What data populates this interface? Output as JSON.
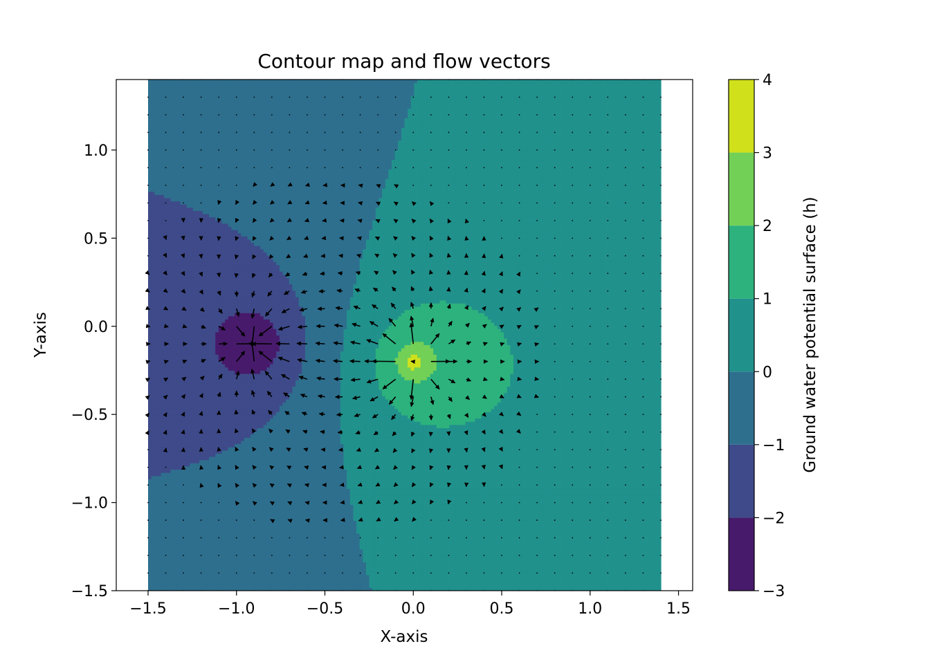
{
  "chart_data": {
    "type": "contourf",
    "title": "Contour map and flow vectors",
    "xlabel": "X-axis",
    "ylabel": "Y-axis",
    "colorbar_label": "Ground water potential surface (h)",
    "xlim": [
      -1.68,
      1.58
    ],
    "ylim": [
      -1.5,
      1.4
    ],
    "data_extent": {
      "x": [
        -1.5,
        1.4
      ],
      "y": [
        -1.5,
        1.4
      ]
    },
    "xticks": [
      -1.5,
      -1.0,
      -0.5,
      0.0,
      0.5,
      1.0,
      1.5
    ],
    "xtick_labels": [
      "−1.5",
      "−1.0",
      "−0.5",
      "0.0",
      "0.5",
      "1.0",
      "1.5"
    ],
    "yticks": [
      -1.5,
      -1.0,
      -0.5,
      0.0,
      0.5,
      1.0
    ],
    "ytick_labels": [
      "−1.5",
      "−1.0",
      "−0.5",
      "0.0",
      "0.5",
      "1.0"
    ],
    "levels": [
      -3,
      -2,
      -1,
      0,
      1,
      2,
      3,
      4
    ],
    "level_labels": [
      "−3",
      "−2",
      "−1",
      "0",
      "1",
      "2",
      "3",
      "4"
    ],
    "level_colors": [
      "#481a6c",
      "#3e4a89",
      "#2e6f8e",
      "#21918c",
      "#2db27d",
      "#73d056",
      "#d0e11c"
    ],
    "sources": [
      {
        "name": "source",
        "x": 0.0,
        "y": -0.2
      },
      {
        "name": "sink",
        "x": -0.9,
        "y": -0.1
      }
    ],
    "grid": false,
    "vector_field": "flow vectors (quiver), grid spacing 0.1"
  }
}
